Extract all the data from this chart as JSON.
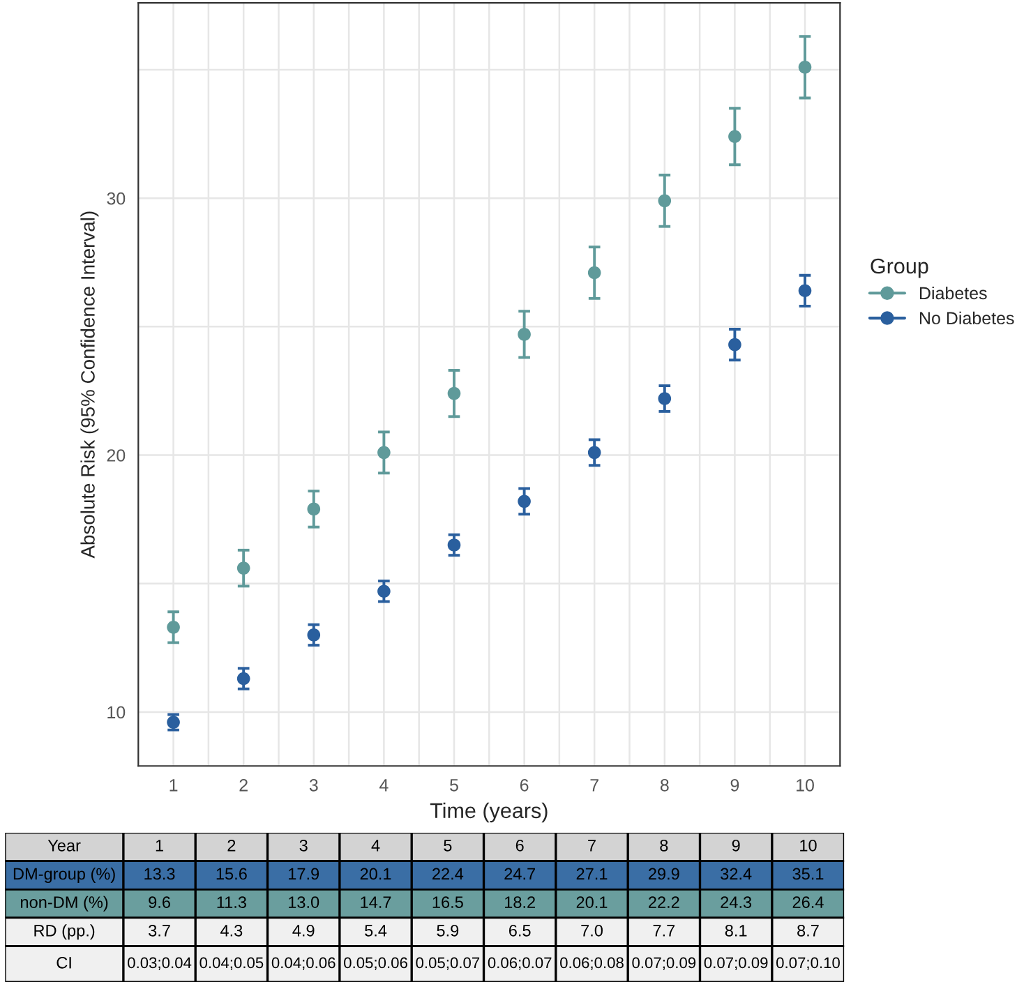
{
  "chart_data": {
    "type": "scatter",
    "xlabel": "Time (years)",
    "ylabel": "Absolute Risk (95% Confidence Interval)",
    "legend_title": "Group",
    "categories": [
      "1",
      "2",
      "3",
      "4",
      "5",
      "6",
      "7",
      "8",
      "9",
      "10"
    ],
    "series": [
      {
        "name": "Diabetes",
        "color": "#5f9a9a",
        "values": [
          13.3,
          15.6,
          17.9,
          20.1,
          22.4,
          24.7,
          27.1,
          29.9,
          32.4,
          35.1
        ],
        "value_labels": [
          "13.3",
          "15.6",
          "17.9",
          "20.1",
          "22.4",
          "24.7",
          "27.1",
          "29.9",
          "32.4",
          "35.1"
        ],
        "errors": [
          0.6,
          0.7,
          0.7,
          0.8,
          0.9,
          0.9,
          1.0,
          1.0,
          1.1,
          1.2
        ]
      },
      {
        "name": "No Diabetes",
        "color": "#2a5f9e",
        "values": [
          9.6,
          11.3,
          13.0,
          14.7,
          16.5,
          18.2,
          20.1,
          22.2,
          24.3,
          26.4
        ],
        "value_labels": [
          "9.6",
          "11.3",
          "13.0",
          "14.7",
          "16.5",
          "18.2",
          "20.1",
          "22.2",
          "24.3",
          "26.4"
        ],
        "errors": [
          0.3,
          0.4,
          0.4,
          0.4,
          0.4,
          0.5,
          0.5,
          0.5,
          0.6,
          0.6
        ]
      }
    ],
    "ylim": [
      7.9,
      37.6
    ],
    "yticks": [
      10,
      {
        "value": 15,
        "label": null
      },
      20,
      {
        "value": 25,
        "label": null
      },
      30,
      {
        "value": 35,
        "label": null
      }
    ],
    "grid": true,
    "legend": "right",
    "marker": "circle",
    "annotations": [
      "Year",
      "DM-group (%)",
      "non-DM (%)",
      "RD (pp.)",
      "CI",
      "3.7",
      "4.3",
      "4.9",
      "5.4",
      "5.9",
      "6.5",
      "7.0",
      "7.7",
      "8.1",
      "8.7",
      "0.03;0.04",
      "0.04;0.05",
      "0.04;0.06",
      "0.05;0.06",
      "0.05;0.07",
      "0.06;0.07",
      "0.06;0.08",
      "0.07;0.09",
      "0.07;0.09",
      "0.07;0.10"
    ]
  }
}
